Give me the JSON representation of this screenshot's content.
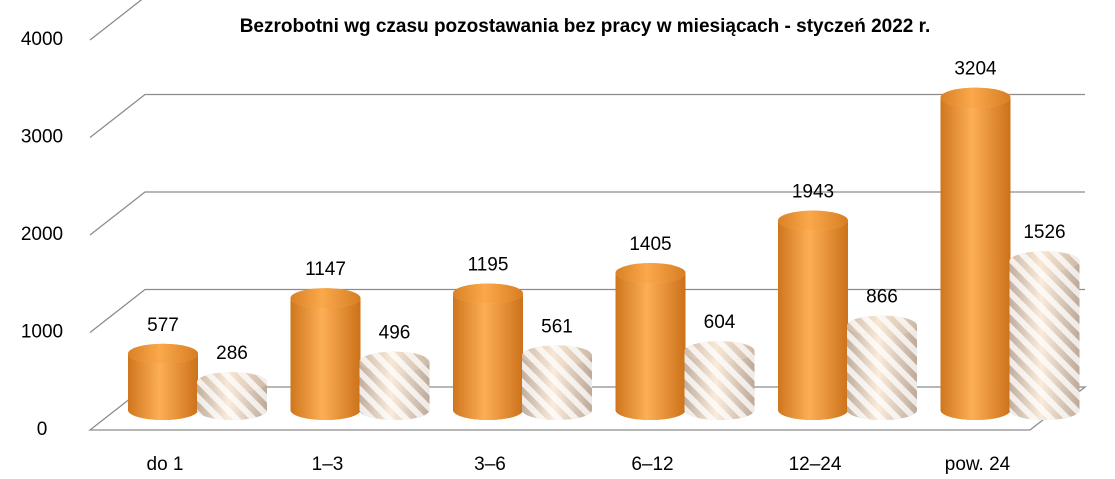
{
  "chart_data": {
    "type": "bar3d",
    "title": "Bezrobotni wg czasu pozostawania bez pracy w miesiącach - styczeń 2022 r.",
    "categories": [
      "do 1",
      "1–3",
      "3–6",
      "6–12",
      "12–24",
      "pow. 24"
    ],
    "series": [
      {
        "color": "#f39a35",
        "values": [
          577,
          1147,
          1195,
          1405,
          1943,
          3204
        ]
      },
      {
        "color": "#f3dcc4",
        "hatch": true,
        "values": [
          286,
          496,
          561,
          604,
          866,
          1526
        ]
      }
    ],
    "ylim": [
      0,
      4000
    ],
    "yticks": [
      0,
      1000,
      2000,
      3000,
      4000
    ],
    "grid": true
  }
}
